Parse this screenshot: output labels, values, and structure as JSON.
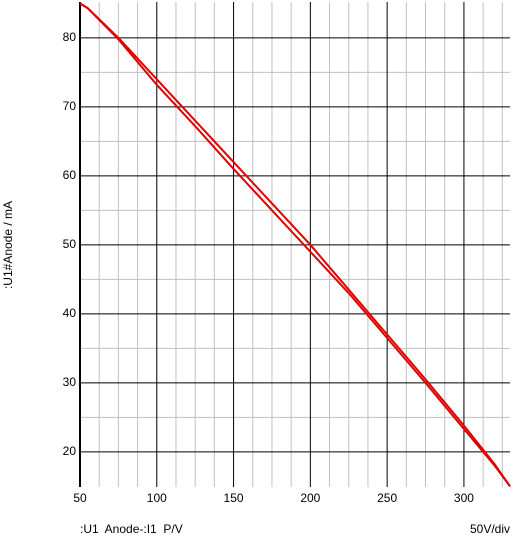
{
  "chart_data": {
    "type": "line",
    "y_label": ":U1#Anode / mA",
    "x_label": ":U1  Anode-:I1  P/V",
    "x_scale_label": "50V/div",
    "xlim": [
      50,
      330
    ],
    "ylim": [
      14.9,
      85.2
    ],
    "xticks": [
      50,
      100,
      150,
      200,
      250,
      300
    ],
    "yticks": [
      20,
      30,
      40,
      50,
      60,
      70,
      80
    ],
    "xminorticks": [
      62.5,
      75,
      87.5,
      112.5,
      125,
      137.5,
      162.5,
      175,
      187.5,
      212.5,
      225,
      237.5,
      262.5,
      275,
      287.5,
      312.5,
      325
    ],
    "yminorticks": [
      25,
      35,
      45,
      55,
      65,
      75
    ],
    "grid": true,
    "series": [
      {
        "color": "#e00000",
        "x": [
          50,
          55,
          75,
          100,
          125,
          150,
          175,
          200,
          225,
          250,
          275,
          300,
          320,
          330
        ],
        "values": [
          85,
          84.3,
          80,
          74,
          68,
          62,
          56,
          50,
          43.5,
          37,
          30.5,
          23.8,
          18.2,
          15
        ]
      },
      {
        "color": "#e00000",
        "x": [
          50,
          55,
          75,
          100,
          125,
          150,
          175,
          200,
          225,
          250,
          275,
          300,
          320,
          330
        ],
        "values": [
          85,
          84.3,
          79.8,
          73.2,
          67.2,
          61,
          55,
          49,
          43,
          36.5,
          30,
          23.3,
          18,
          15
        ]
      }
    ]
  }
}
